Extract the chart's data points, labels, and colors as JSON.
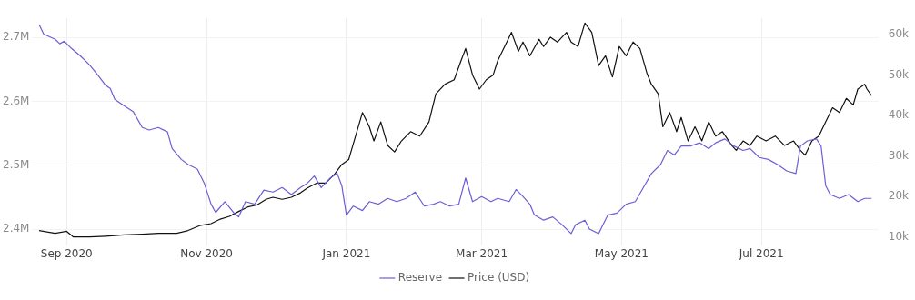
{
  "chart_data": {
    "type": "line",
    "legend": "bottom",
    "grid": true,
    "marker": "none",
    "line_style": "solid",
    "xlim": [
      "2020-08-17",
      "2021-08-21"
    ],
    "xticks": [
      {
        "value": "2020-09-01",
        "label": "Sep 2020"
      },
      {
        "value": "2020-11-01",
        "label": "Nov 2020"
      },
      {
        "value": "2021-01-01",
        "label": "Jan 2021"
      },
      {
        "value": "2021-03-01",
        "label": "Mar 2021"
      },
      {
        "value": "2021-05-01",
        "label": "May 2021"
      },
      {
        "value": "2021-07-01",
        "label": "Jul 2021"
      }
    ],
    "ylim": [
      2375000,
      2730000
    ],
    "yticks": [
      {
        "value": 2400000,
        "label": "2.4M"
      },
      {
        "value": 2500000,
        "label": "2.5M"
      },
      {
        "value": 2600000,
        "label": "2.6M"
      },
      {
        "value": 2700000,
        "label": "2.7M"
      }
    ],
    "y2lim": [
      8000,
      64000
    ],
    "y2ticks": [
      {
        "value": 10000,
        "label": "10k"
      },
      {
        "value": 20000,
        "label": "20k"
      },
      {
        "value": 30000,
        "label": "30k"
      },
      {
        "value": 40000,
        "label": "40k"
      },
      {
        "value": 50000,
        "label": "50k"
      },
      {
        "value": 60000,
        "label": "60k"
      }
    ],
    "series": [
      {
        "name": "Reserve",
        "color": "#6b5fd6",
        "x": [
          "2020-08-20",
          "2020-08-22",
          "2020-08-27",
          "2020-08-29",
          "2020-08-31",
          "2020-09-03",
          "2020-09-07",
          "2020-09-11",
          "2020-09-15",
          "2020-09-18",
          "2020-09-20",
          "2020-09-22",
          "2020-09-26",
          "2020-09-30",
          "2020-10-04",
          "2020-10-07",
          "2020-10-11",
          "2020-10-15",
          "2020-10-17",
          "2020-10-21",
          "2020-10-24",
          "2020-10-28",
          "2020-10-31",
          "2020-11-03",
          "2020-11-05",
          "2020-11-09",
          "2020-11-13",
          "2020-11-15",
          "2020-11-18",
          "2020-11-22",
          "2020-11-26",
          "2020-11-30",
          "2020-12-04",
          "2020-12-08",
          "2020-12-12",
          "2020-12-15",
          "2020-12-18",
          "2020-12-21",
          "2020-12-25",
          "2020-12-28",
          "2020-12-30",
          "2021-01-01",
          "2021-01-04",
          "2021-01-08",
          "2021-01-11",
          "2021-01-15",
          "2021-01-19",
          "2021-01-23",
          "2021-01-27",
          "2021-01-31",
          "2021-02-04",
          "2021-02-08",
          "2021-02-11",
          "2021-02-15",
          "2021-02-19",
          "2021-02-22",
          "2021-02-25",
          "2021-03-01",
          "2021-03-05",
          "2021-03-08",
          "2021-03-13",
          "2021-03-16",
          "2021-03-19",
          "2021-03-22",
          "2021-03-24",
          "2021-03-28",
          "2021-04-01",
          "2021-04-05",
          "2021-04-09",
          "2021-04-11",
          "2021-04-15",
          "2021-04-17",
          "2021-04-21",
          "2021-04-25",
          "2021-04-29",
          "2021-05-03",
          "2021-05-07",
          "2021-05-10",
          "2021-05-14",
          "2021-05-18",
          "2021-05-21",
          "2021-05-24",
          "2021-05-27",
          "2021-05-31",
          "2021-06-04",
          "2021-06-08",
          "2021-06-11",
          "2021-06-15",
          "2021-06-19",
          "2021-06-23",
          "2021-06-26",
          "2021-06-30",
          "2021-07-04",
          "2021-07-08",
          "2021-07-12",
          "2021-07-16",
          "2021-07-18",
          "2021-07-21",
          "2021-07-25",
          "2021-07-27",
          "2021-07-29",
          "2021-07-31",
          "2021-08-04",
          "2021-08-08",
          "2021-08-12",
          "2021-08-15",
          "2021-08-18"
        ],
        "values": [
          2720000,
          2705000,
          2697000,
          2690000,
          2694000,
          2683000,
          2671000,
          2657000,
          2639000,
          2625000,
          2620000,
          2603000,
          2593000,
          2584000,
          2559000,
          2555000,
          2559000,
          2552000,
          2526000,
          2509000,
          2501000,
          2494000,
          2472000,
          2439000,
          2426000,
          2443000,
          2425000,
          2419000,
          2443000,
          2439000,
          2461000,
          2458000,
          2465000,
          2454000,
          2465000,
          2472000,
          2483000,
          2465000,
          2480000,
          2487000,
          2468000,
          2422000,
          2436000,
          2429000,
          2443000,
          2439000,
          2448000,
          2443000,
          2448000,
          2458000,
          2436000,
          2439000,
          2443000,
          2436000,
          2439000,
          2480000,
          2443000,
          2451000,
          2443000,
          2448000,
          2443000,
          2462000,
          2451000,
          2439000,
          2422000,
          2414000,
          2419000,
          2407000,
          2393000,
          2407000,
          2414000,
          2400000,
          2393000,
          2422000,
          2425000,
          2439000,
          2443000,
          2462000,
          2487000,
          2501000,
          2523000,
          2516000,
          2530000,
          2530000,
          2535000,
          2526000,
          2535000,
          2541000,
          2530000,
          2523000,
          2526000,
          2512000,
          2509000,
          2501000,
          2491000,
          2487000,
          2530000,
          2538000,
          2541000,
          2530000,
          2468000,
          2454000,
          2448000,
          2454000,
          2443000,
          2448000,
          2448000
        ]
      },
      {
        "name": "Price (USD)",
        "color": "#111111",
        "axis": "y2",
        "x": [
          "2020-08-20",
          "2020-08-27",
          "2020-09-01",
          "2020-09-04",
          "2020-09-11",
          "2020-09-18",
          "2020-09-26",
          "2020-10-04",
          "2020-10-11",
          "2020-10-19",
          "2020-10-24",
          "2020-10-29",
          "2020-11-03",
          "2020-11-07",
          "2020-11-11",
          "2020-11-15",
          "2020-11-19",
          "2020-11-23",
          "2020-11-27",
          "2020-11-30",
          "2020-12-04",
          "2020-12-08",
          "2020-12-12",
          "2020-12-15",
          "2020-12-19",
          "2020-12-23",
          "2020-12-27",
          "2020-12-30",
          "2021-01-02",
          "2021-01-05",
          "2021-01-08",
          "2021-01-11",
          "2021-01-13",
          "2021-01-16",
          "2021-01-19",
          "2021-01-22",
          "2021-01-25",
          "2021-01-29",
          "2021-02-02",
          "2021-02-06",
          "2021-02-09",
          "2021-02-13",
          "2021-02-17",
          "2021-02-20",
          "2021-02-22",
          "2021-02-25",
          "2021-02-28",
          "2021-03-03",
          "2021-03-06",
          "2021-03-08",
          "2021-03-11",
          "2021-03-14",
          "2021-03-17",
          "2021-03-19",
          "2021-03-22",
          "2021-03-26",
          "2021-03-28",
          "2021-03-31",
          "2021-04-03",
          "2021-04-07",
          "2021-04-09",
          "2021-04-12",
          "2021-04-15",
          "2021-04-18",
          "2021-04-21",
          "2021-04-24",
          "2021-04-27",
          "2021-04-30",
          "2021-05-03",
          "2021-05-06",
          "2021-05-09",
          "2021-05-12",
          "2021-05-14",
          "2021-05-17",
          "2021-05-19",
          "2021-05-22",
          "2021-05-25",
          "2021-05-27",
          "2021-05-30",
          "2021-06-02",
          "2021-06-05",
          "2021-06-08",
          "2021-06-11",
          "2021-06-14",
          "2021-06-18",
          "2021-06-20",
          "2021-06-23",
          "2021-06-26",
          "2021-06-29",
          "2021-07-03",
          "2021-07-07",
          "2021-07-11",
          "2021-07-15",
          "2021-07-18",
          "2021-07-20",
          "2021-07-23",
          "2021-07-26",
          "2021-07-29",
          "2021-08-01",
          "2021-08-04",
          "2021-08-07",
          "2021-08-10",
          "2021-08-12",
          "2021-08-15",
          "2021-08-16",
          "2021-08-18"
        ],
        "values": [
          11600,
          10900,
          11400,
          10000,
          10000,
          10200,
          10500,
          10700,
          10900,
          10900,
          11600,
          12800,
          13300,
          14400,
          15100,
          16300,
          17400,
          17900,
          19300,
          19800,
          19300,
          19800,
          20900,
          22100,
          23300,
          23300,
          25600,
          27900,
          29100,
          34900,
          40700,
          37200,
          33700,
          38400,
          32600,
          31000,
          33700,
          36000,
          34900,
          38400,
          45300,
          47700,
          48800,
          53500,
          56500,
          50000,
          46500,
          48800,
          50000,
          53500,
          57000,
          60500,
          55800,
          58100,
          54700,
          58800,
          57000,
          59300,
          58100,
          60500,
          58100,
          57000,
          62800,
          60500,
          52300,
          54700,
          49500,
          57000,
          54700,
          58100,
          56500,
          50500,
          47700,
          45300,
          37200,
          40700,
          36000,
          39500,
          33700,
          37200,
          33700,
          38400,
          34900,
          36000,
          32600,
          31400,
          33700,
          32600,
          34900,
          33700,
          34900,
          32600,
          33700,
          31400,
          30200,
          33700,
          34900,
          38400,
          41900,
          40700,
          44200,
          42600,
          46500,
          47700,
          46500,
          44900
        ]
      }
    ]
  }
}
